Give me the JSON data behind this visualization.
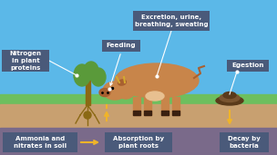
{
  "bg_sky": "#5bb8e8",
  "grass_color": "#6dbf5e",
  "soil_color": "#c8a070",
  "subsoil_color": "#7a6a8a",
  "label_box_color": "#4a5a7a",
  "label_text_color": "#ffffff",
  "arrow_color": "#f0b429",
  "cow_body_color": "#c8854a",
  "cow_dark": "#a86030",
  "cow_light": "#e8c090",
  "tree_trunk": "#8B6914",
  "tree_leaf": "#5a9a3a",
  "dung_color": "#5a3a1a",
  "dung_light": "#7a5530",
  "labels": {
    "excretion": "Excretion, urine,\nbreathing, sweating",
    "feeding": "Feeding",
    "nitrogen": "Nitrogen\nin plant\nproteins",
    "egestion": "Egestion",
    "ammonia": "Ammonia and\nnitrates in soil",
    "absorption": "Absorption by\nplant roots",
    "decay": "Decay by\nbacteria"
  },
  "figsize": [
    3.04,
    1.71
  ],
  "dpi": 100
}
